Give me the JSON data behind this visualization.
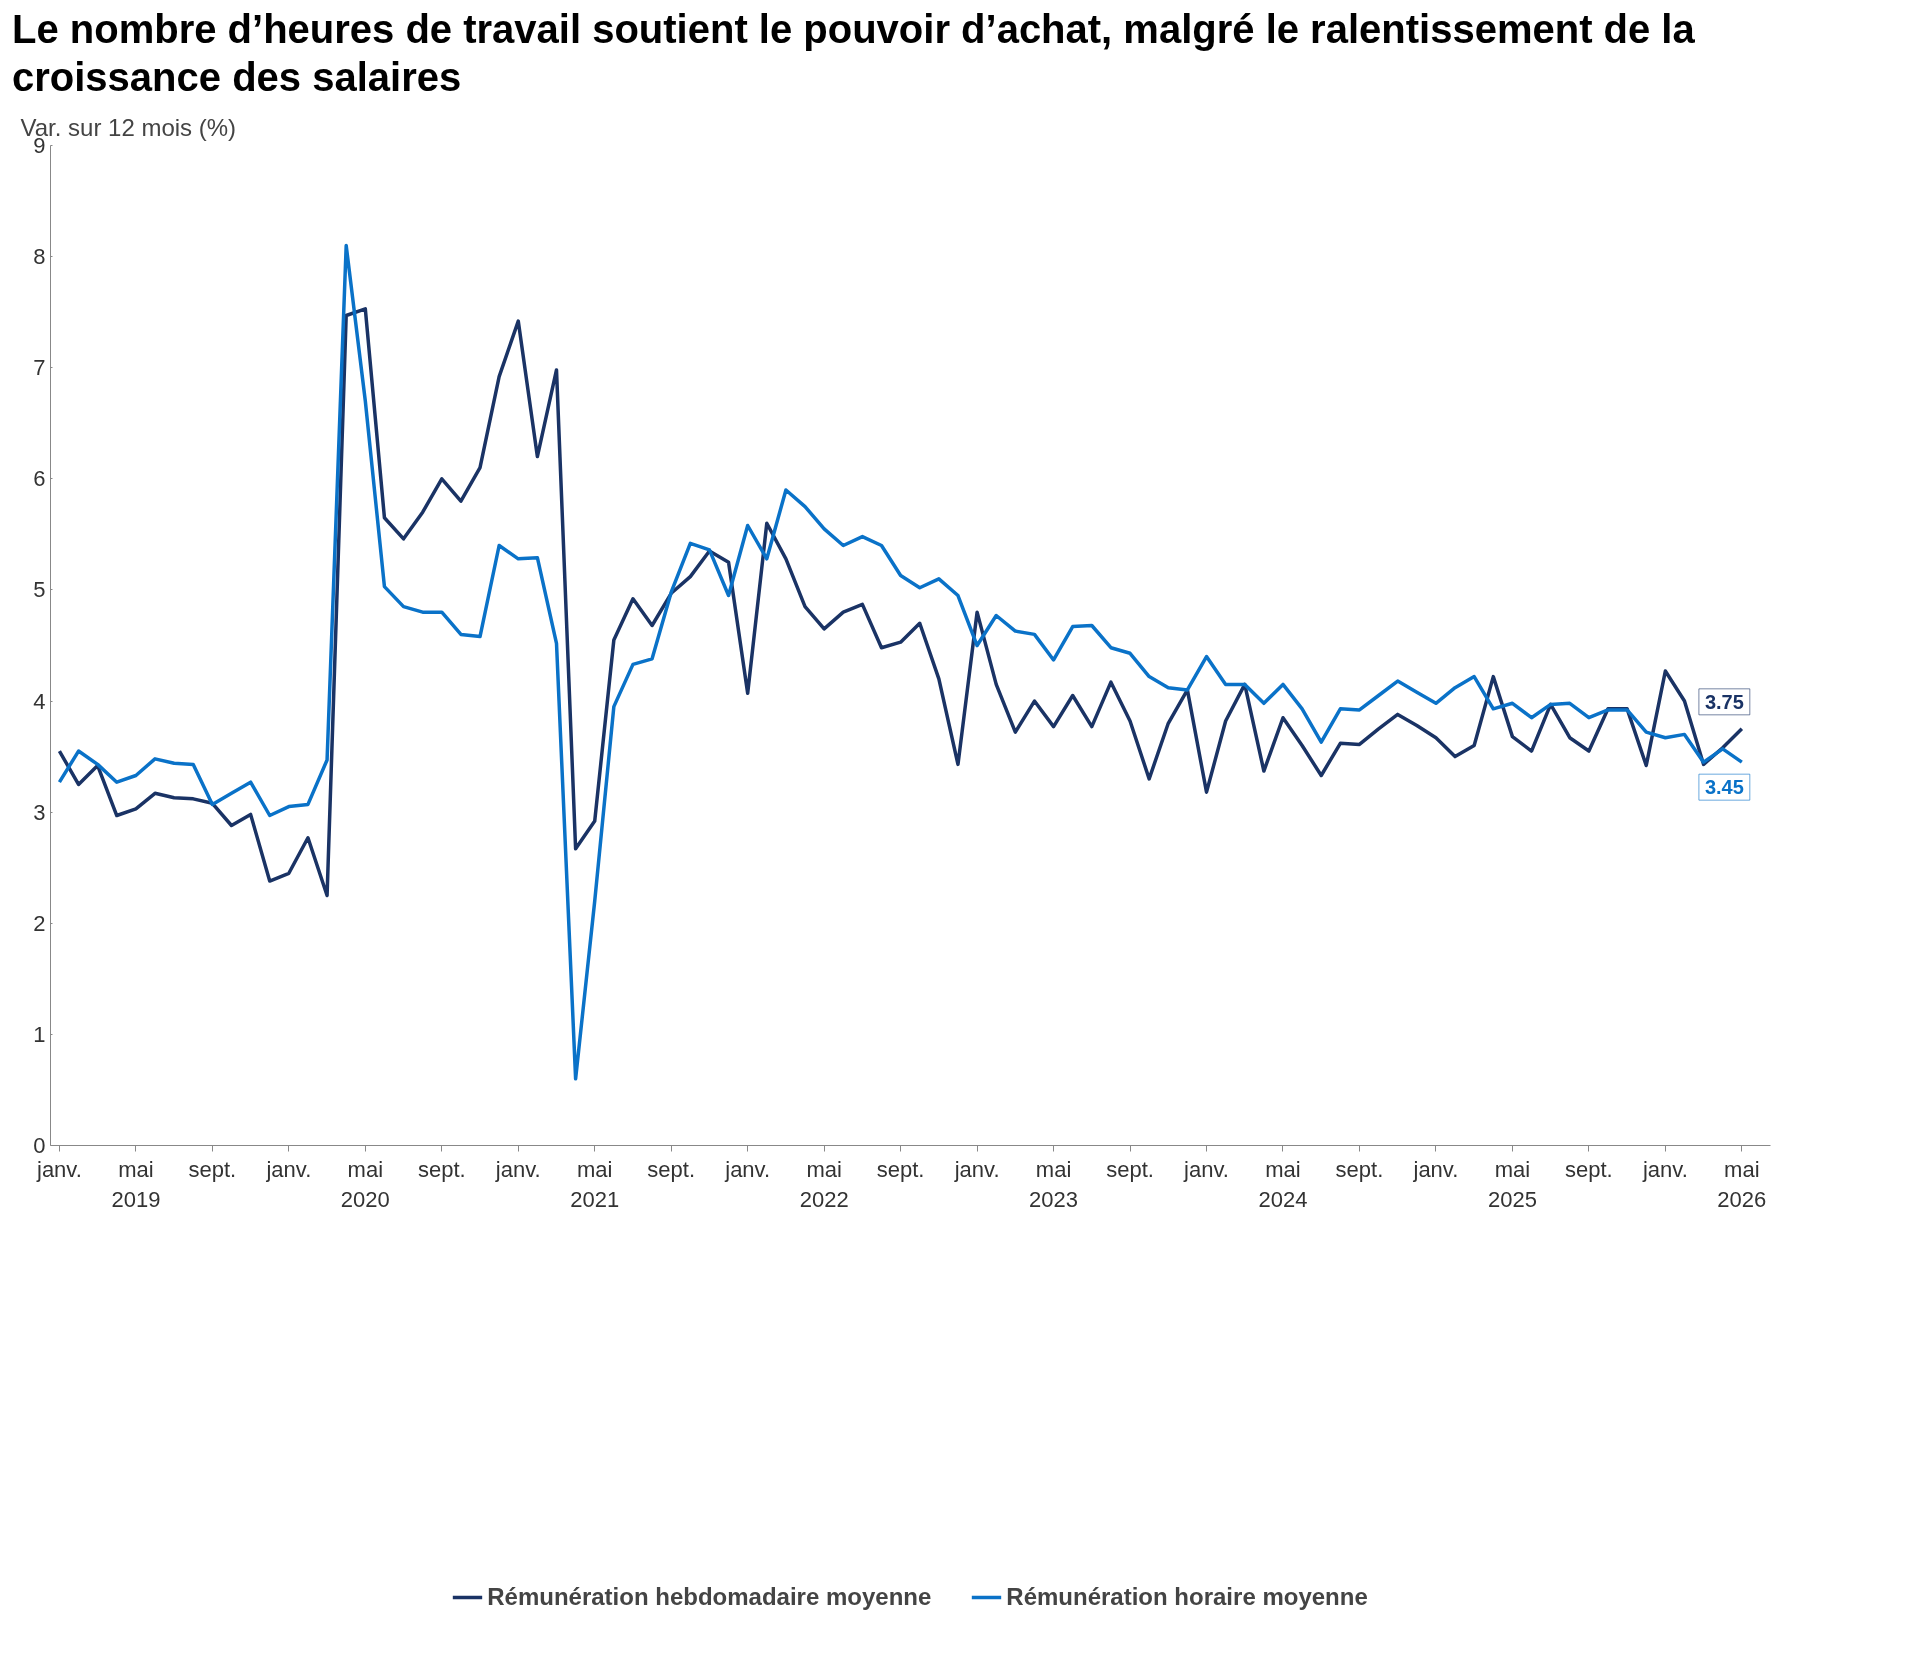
{
  "chart_data": {
    "type": "line",
    "title": "Le nombre d’heures de travail soutient le pouvoir d’achat, malgré le ralentissement de la croissance des salaires",
    "ylabel": "Var. sur 12 mois (%)",
    "x": [
      "2019-01",
      "2019-02",
      "2019-03",
      "2019-04",
      "2019-05",
      "2019-06",
      "2019-07",
      "2019-08",
      "2019-09",
      "2019-10",
      "2019-11",
      "2019-12",
      "2020-01",
      "2020-02",
      "2020-03",
      "2020-04",
      "2020-05",
      "2020-06",
      "2020-07",
      "2020-08",
      "2020-09",
      "2020-10",
      "2020-11",
      "2020-12",
      "2021-01",
      "2021-02",
      "2021-03",
      "2021-04",
      "2021-05",
      "2021-06",
      "2021-07",
      "2021-08",
      "2021-09",
      "2021-10",
      "2021-11",
      "2021-12",
      "2022-01",
      "2022-02",
      "2022-03",
      "2022-04",
      "2022-05",
      "2022-06",
      "2022-07",
      "2022-08",
      "2022-09",
      "2022-10",
      "2022-11",
      "2022-12",
      "2023-01",
      "2023-02",
      "2023-03",
      "2023-04",
      "2023-05",
      "2023-06",
      "2023-07",
      "2023-08",
      "2023-09",
      "2023-10",
      "2023-11",
      "2023-12",
      "2024-01",
      "2024-02",
      "2024-03",
      "2024-04",
      "2024-05",
      "2024-06",
      "2024-07",
      "2024-08",
      "2024-09",
      "2024-10",
      "2024-11",
      "2024-12",
      "2025-01",
      "2025-02",
      "2025-03",
      "2025-04",
      "2025-05",
      "2025-06",
      "2025-07",
      "2025-08",
      "2025-09",
      "2025-10",
      "2025-11",
      "2025-12",
      "2026-01",
      "2026-02",
      "2026-03",
      "2026-04",
      "2026-05"
    ],
    "series": [
      {
        "name": "Rémunération hebdomadaire moyenne",
        "color": "#1a3365",
        "values": [
          3.55,
          3.25,
          3.42,
          2.97,
          3.03,
          3.17,
          3.13,
          3.12,
          3.08,
          2.88,
          2.98,
          2.38,
          2.45,
          2.77,
          2.25,
          7.47,
          7.53,
          5.65,
          5.46,
          5.7,
          6.0,
          5.8,
          6.1,
          6.92,
          7.42,
          6.2,
          6.98,
          2.67,
          2.92,
          4.55,
          4.92,
          4.68,
          4.97,
          5.12,
          5.35,
          5.25,
          4.07,
          5.6,
          5.28,
          4.85,
          4.65,
          4.8,
          4.87,
          4.48,
          4.53,
          4.7,
          4.2,
          3.43,
          4.8,
          4.15,
          3.72,
          4.0,
          3.77,
          4.05,
          3.77,
          4.17,
          3.82,
          3.3,
          3.8,
          4.1,
          3.18,
          3.82,
          4.15,
          3.37,
          3.85,
          3.6,
          3.33,
          3.62,
          3.61,
          3.75,
          3.88,
          3.78,
          3.67,
          3.5,
          3.6,
          4.22,
          3.68,
          3.55,
          3.97,
          3.67,
          3.55,
          3.93,
          3.93,
          3.42,
          4.27,
          4.0,
          3.43,
          3.58,
          3.75
        ],
        "value_labels": [
          null,
          null,
          null,
          null,
          null,
          null,
          null,
          null,
          null,
          null,
          null,
          null,
          null,
          null,
          null,
          null,
          null,
          null,
          null,
          null,
          null,
          null,
          null,
          null,
          null,
          null,
          null,
          null,
          null,
          null,
          null,
          null,
          null,
          null,
          null,
          null,
          null,
          null,
          null,
          null,
          null,
          null,
          null,
          null,
          null,
          null,
          null,
          null,
          null,
          null,
          null,
          null,
          null,
          null,
          null,
          null,
          null,
          null,
          null,
          null,
          null,
          null,
          null,
          null,
          null,
          null,
          null,
          null,
          null,
          null,
          null,
          null,
          null,
          null,
          null,
          null,
          null,
          null,
          null,
          null,
          null,
          null,
          null,
          null,
          null,
          null,
          null,
          null,
          "3.75"
        ]
      },
      {
        "name": "Rémunération horaire moyenne",
        "color": "#0a72c8",
        "values": [
          3.27,
          3.55,
          3.43,
          3.27,
          3.33,
          3.48,
          3.44,
          3.43,
          3.07,
          3.17,
          3.27,
          2.97,
          3.05,
          3.07,
          3.47,
          8.1,
          6.7,
          5.03,
          4.85,
          4.8,
          4.8,
          4.6,
          4.58,
          5.4,
          5.28,
          5.29,
          4.52,
          0.6,
          2.2,
          3.95,
          4.33,
          4.38,
          4.98,
          5.42,
          5.36,
          4.95,
          5.58,
          5.28,
          5.9,
          5.75,
          5.55,
          5.4,
          5.48,
          5.4,
          5.13,
          5.02,
          5.1,
          4.95,
          4.5,
          4.77,
          4.63,
          4.6,
          4.37,
          4.67,
          4.68,
          4.48,
          4.43,
          4.22,
          4.12,
          4.1,
          4.4,
          4.15,
          4.15,
          3.98,
          4.15,
          3.93,
          3.63,
          3.93,
          3.92,
          4.05,
          4.18,
          4.08,
          3.98,
          4.12,
          4.22,
          3.93,
          3.98,
          3.85,
          3.97,
          3.98,
          3.85,
          3.92,
          3.92,
          3.72,
          3.67,
          3.7,
          3.45,
          3.57,
          3.45
        ],
        "value_labels": [
          null,
          null,
          null,
          null,
          null,
          null,
          null,
          null,
          null,
          null,
          null,
          null,
          null,
          null,
          null,
          null,
          null,
          null,
          null,
          null,
          null,
          null,
          null,
          null,
          null,
          null,
          null,
          null,
          null,
          null,
          null,
          null,
          null,
          null,
          null,
          null,
          null,
          null,
          null,
          null,
          null,
          null,
          null,
          null,
          null,
          null,
          null,
          null,
          null,
          null,
          null,
          null,
          null,
          null,
          null,
          null,
          null,
          null,
          null,
          null,
          null,
          null,
          null,
          null,
          null,
          null,
          null,
          null,
          null,
          null,
          null,
          null,
          null,
          null,
          null,
          null,
          null,
          null,
          null,
          null,
          null,
          null,
          null,
          null,
          null,
          null,
          null,
          null,
          "3.45"
        ]
      }
    ],
    "xlim": [
      "2018-12-17",
      "2026-06-16"
    ],
    "xticks": [
      {
        "value": "2019-01-01",
        "label": "janv."
      },
      {
        "value": "2019-05-01",
        "label": "mai\n2019"
      },
      {
        "value": "2019-09-01",
        "label": "sept."
      },
      {
        "value": "2020-01-01",
        "label": "janv."
      },
      {
        "value": "2020-05-01",
        "label": "mai\n2020"
      },
      {
        "value": "2020-09-01",
        "label": "sept."
      },
      {
        "value": "2021-01-01",
        "label": "janv."
      },
      {
        "value": "2021-05-01",
        "label": "mai\n2021"
      },
      {
        "value": "2021-09-01",
        "label": "sept."
      },
      {
        "value": "2022-01-01",
        "label": "janv."
      },
      {
        "value": "2022-05-01",
        "label": "mai\n2022"
      },
      {
        "value": "2022-09-01",
        "label": "sept."
      },
      {
        "value": "2023-01-01",
        "label": "janv."
      },
      {
        "value": "2023-05-01",
        "label": "mai\n2023"
      },
      {
        "value": "2023-09-01",
        "label": "sept."
      },
      {
        "value": "2024-01-01",
        "label": "janv."
      },
      {
        "value": "2024-05-01",
        "label": "mai\n2024"
      },
      {
        "value": "2024-09-01",
        "label": "sept."
      },
      {
        "value": "2025-01-01",
        "label": "janv."
      },
      {
        "value": "2025-05-01",
        "label": "mai\n2025"
      },
      {
        "value": "2025-09-01",
        "label": "sept."
      },
      {
        "value": "2026-01-01",
        "label": "janv."
      },
      {
        "value": "2026-05-01",
        "label": "mai\n2026"
      }
    ],
    "ylim": [
      0,
      9
    ],
    "yticks": [
      0,
      1,
      2,
      3,
      4,
      5,
      6,
      7,
      8,
      9
    ],
    "grid": false,
    "legend": "bottom"
  }
}
